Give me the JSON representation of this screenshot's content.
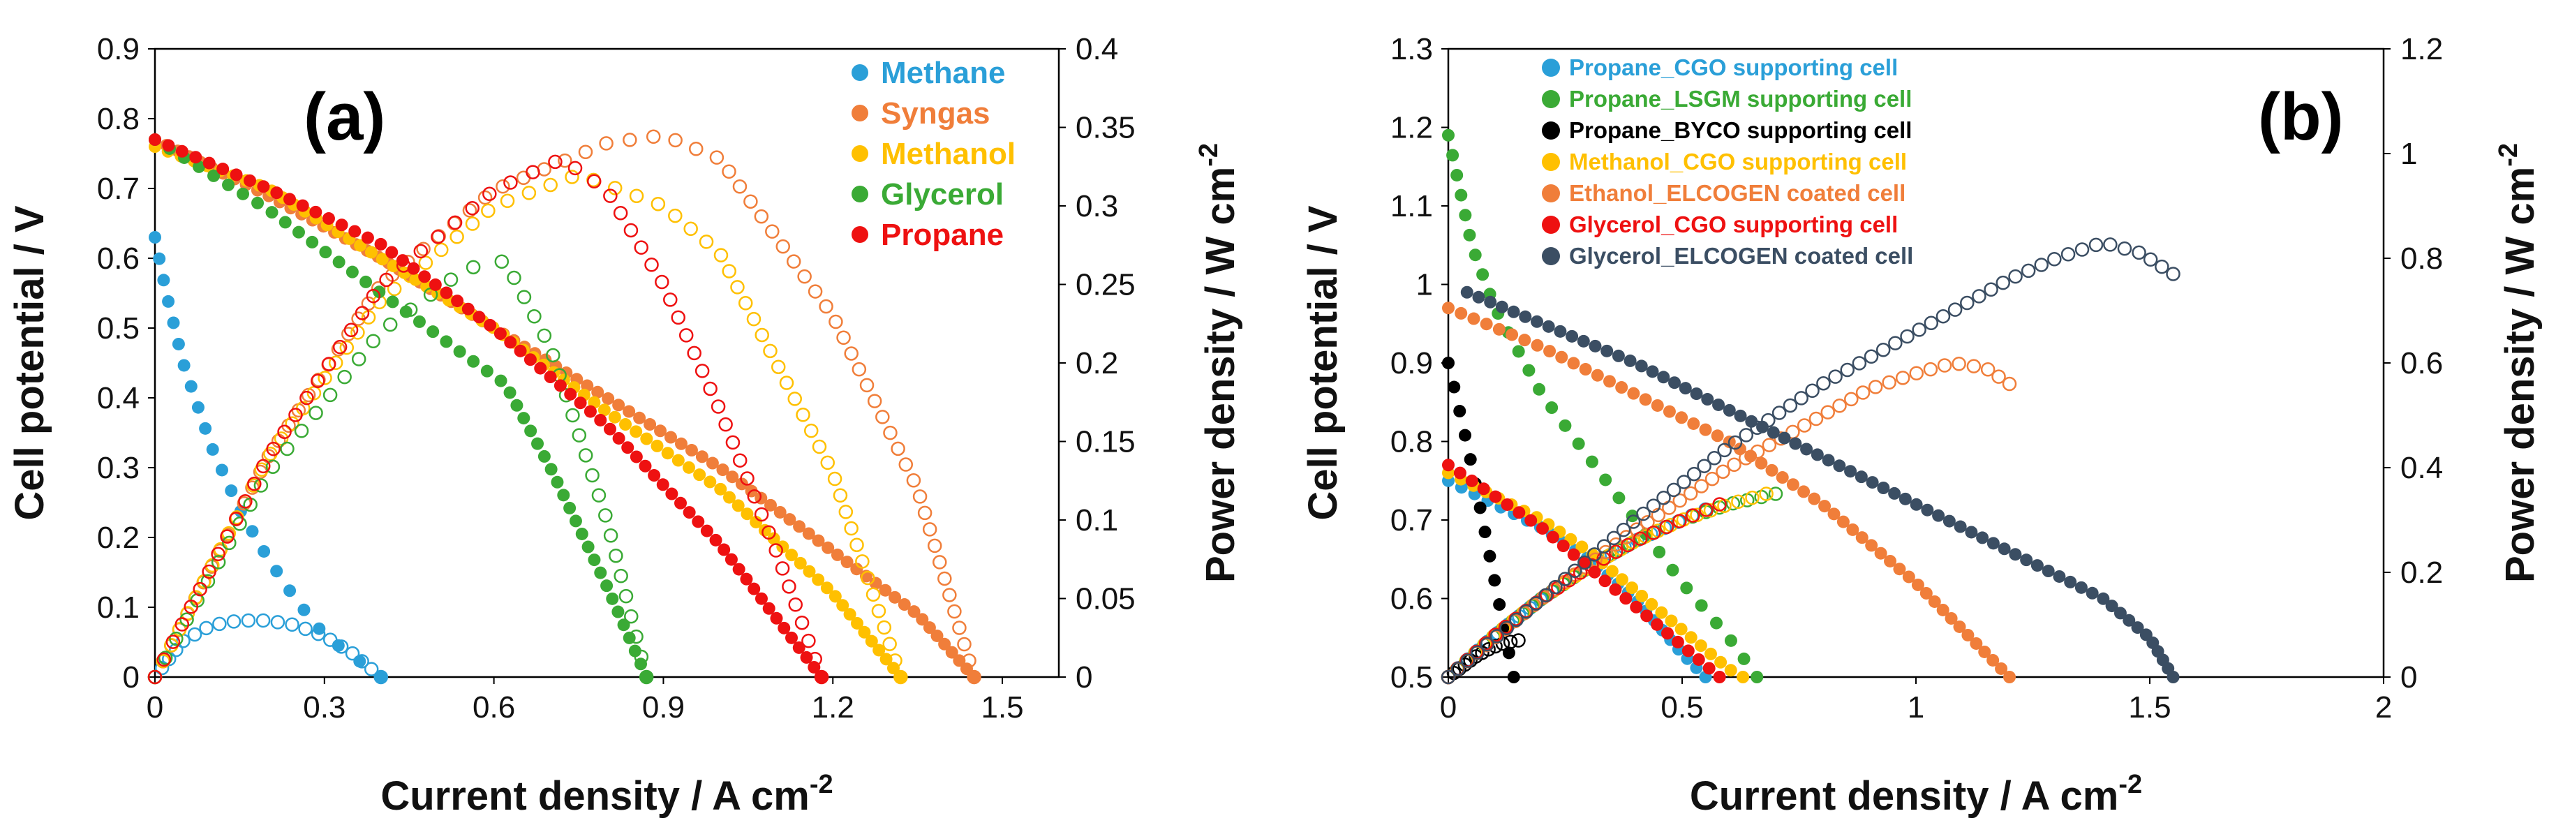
{
  "chart_data": [
    {
      "panel": "(a)",
      "type": "scatter",
      "xlabel": "Current density / A cm",
      "xlabel_sup": "-2",
      "ylabel": "Cell potential / V",
      "y2label": "Power density / W cm",
      "y2label_sup": "-2",
      "xlim": [
        0,
        1.6
      ],
      "ylim": [
        0,
        0.9
      ],
      "y2lim": [
        0,
        0.4
      ],
      "xticks": [
        "0",
        "0.3",
        "0.6",
        "0.9",
        "1.2",
        "1.5"
      ],
      "yticks": [
        "0",
        "0.1",
        "0.2",
        "0.3",
        "0.4",
        "0.5",
        "0.6",
        "0.7",
        "0.8",
        "0.9"
      ],
      "y2ticks": [
        "0",
        "0.05",
        "0.1",
        "0.15",
        "0.2",
        "0.25",
        "0.3",
        "0.35",
        "0.4"
      ],
      "legend_position": "top-right",
      "series": [
        {
          "name": "Methane",
          "color": "#2a9fd8",
          "voltage": {
            "x": [
              0,
              0.02,
              0.05,
              0.1,
              0.15,
              0.2,
              0.25,
              0.3,
              0.35,
              0.4
            ],
            "y": [
              0.63,
              0.55,
              0.45,
              0.33,
              0.24,
              0.17,
              0.11,
              0.06,
              0.03,
              0
            ]
          },
          "power": {
            "x": [
              0,
              0.05,
              0.1,
              0.15,
              0.2,
              0.25,
              0.3,
              0.35,
              0.4
            ],
            "y": [
              0,
              0.023,
              0.033,
              0.036,
              0.036,
              0.033,
              0.026,
              0.015,
              0
            ]
          }
        },
        {
          "name": "Syngas",
          "color": "#f07e3a",
          "voltage": {
            "x": [
              0,
              0.2,
              0.4,
              0.6,
              0.8,
              1.0,
              1.2,
              1.35,
              1.45
            ],
            "y": [
              0.77,
              0.69,
              0.6,
              0.5,
              0.4,
              0.3,
              0.18,
              0.09,
              0
            ]
          },
          "power": {
            "x": [
              0,
              0.2,
              0.4,
              0.6,
              0.8,
              0.9,
              1.0,
              1.2,
              1.35,
              1.45
            ],
            "y": [
              0,
              0.14,
              0.25,
              0.31,
              0.34,
              0.345,
              0.33,
              0.23,
              0.12,
              0
            ]
          }
        },
        {
          "name": "Methanol",
          "color": "#ffc000",
          "voltage": {
            "x": [
              0,
              0.2,
              0.4,
              0.6,
              0.8,
              1.0,
              1.2,
              1.32
            ],
            "y": [
              0.76,
              0.7,
              0.6,
              0.5,
              0.38,
              0.27,
              0.12,
              0
            ]
          },
          "power": {
            "x": [
              0,
              0.2,
              0.4,
              0.6,
              0.75,
              0.9,
              1.0,
              1.1,
              1.2,
              1.32
            ],
            "y": [
              0,
              0.14,
              0.24,
              0.3,
              0.32,
              0.3,
              0.27,
              0.2,
              0.13,
              0
            ]
          }
        },
        {
          "name": "Glycerol",
          "color": "#3aaa35",
          "voltage": {
            "x": [
              0,
              0.2,
              0.4,
              0.55,
              0.62,
              0.7,
              0.8,
              0.87
            ],
            "y": [
              0.77,
              0.67,
              0.55,
              0.46,
              0.42,
              0.3,
              0.13,
              0
            ]
          },
          "power": {
            "x": [
              0,
              0.2,
              0.4,
              0.55,
              0.62,
              0.7,
              0.8,
              0.87
            ],
            "y": [
              0,
              0.13,
              0.22,
              0.26,
              0.265,
              0.21,
              0.1,
              0
            ]
          }
        },
        {
          "name": "Propane",
          "color": "#ee1111",
          "voltage": {
            "x": [
              0,
              0.2,
              0.4,
              0.6,
              0.8,
              1.0,
              1.18
            ],
            "y": [
              0.77,
              0.7,
              0.62,
              0.5,
              0.36,
              0.19,
              0
            ]
          },
          "power": {
            "x": [
              0,
              0.2,
              0.4,
              0.6,
              0.72,
              0.8,
              0.9,
              1.0,
              1.1,
              1.18
            ],
            "y": [
              0,
              0.14,
              0.25,
              0.31,
              0.33,
              0.31,
              0.25,
              0.17,
              0.08,
              0
            ]
          }
        }
      ]
    },
    {
      "panel": "(b)",
      "type": "scatter",
      "xlabel": "Current density / A cm",
      "xlabel_sup": "-2",
      "ylabel": "Cell potential / V",
      "y2label": "Power density / W cm",
      "y2label_sup": "-2",
      "xlim": [
        0,
        2
      ],
      "ylim": [
        0.5,
        1.3
      ],
      "y2lim": [
        0,
        1.2
      ],
      "xticks": [
        "0",
        "0.5",
        "1",
        "1.5",
        "2"
      ],
      "yticks": [
        "0.5",
        "0.6",
        "0.7",
        "0.8",
        "0.9",
        "1",
        "1.1",
        "1.2",
        "1.3"
      ],
      "y2ticks": [
        "0",
        "0.2",
        "0.4",
        "0.6",
        "0.8",
        "1",
        "1.2"
      ],
      "legend_position": "top-left",
      "series": [
        {
          "name": "Propane_CGO supporting cell",
          "color": "#2a9fd8",
          "voltage": {
            "x": [
              0,
              0.1,
              0.2,
              0.3,
              0.4,
              0.5,
              0.55
            ],
            "y": [
              0.75,
              0.72,
              0.69,
              0.65,
              0.6,
              0.53,
              0.5
            ]
          },
          "power": {
            "x": [
              0,
              0.1,
              0.2,
              0.3,
              0.4,
              0.5,
              0.55
            ],
            "y": [
              0,
              0.08,
              0.15,
              0.21,
              0.26,
              0.3,
              0.32
            ]
          }
        },
        {
          "name": "Propane_LSGM supporting cell",
          "color": "#3aaa35",
          "voltage": {
            "x": [
              0,
              0.05,
              0.1,
              0.2,
              0.3,
              0.4,
              0.5,
              0.6,
              0.66
            ],
            "y": [
              1.19,
              1.05,
              0.97,
              0.86,
              0.78,
              0.7,
              0.62,
              0.55,
              0.5
            ]
          },
          "power": {
            "x": [
              0,
              0.1,
              0.2,
              0.3,
              0.4,
              0.5,
              0.6,
              0.7
            ],
            "y": [
              0,
              0.08,
              0.15,
              0.21,
              0.26,
              0.3,
              0.33,
              0.35
            ]
          }
        },
        {
          "name": "Propane_BYCO supporting cell",
          "color": "#000000",
          "voltage": {
            "x": [
              0,
              0.02,
              0.05,
              0.08,
              0.1,
              0.12,
              0.14
            ],
            "y": [
              0.9,
              0.85,
              0.77,
              0.68,
              0.62,
              0.56,
              0.5
            ]
          },
          "power": {
            "x": [
              0,
              0.03,
              0.06,
              0.09,
              0.12,
              0.15
            ],
            "y": [
              0,
              0.02,
              0.04,
              0.055,
              0.065,
              0.07
            ]
          }
        },
        {
          "name": "Methanol_CGO supporting cell",
          "color": "#ffc000",
          "voltage": {
            "x": [
              0,
              0.1,
              0.2,
              0.3,
              0.4,
              0.5,
              0.6,
              0.63
            ],
            "y": [
              0.76,
              0.73,
              0.7,
              0.66,
              0.61,
              0.56,
              0.51,
              0.5
            ]
          },
          "power": {
            "x": [
              0,
              0.1,
              0.2,
              0.3,
              0.4,
              0.5,
              0.6,
              0.68
            ],
            "y": [
              0,
              0.08,
              0.15,
              0.21,
              0.26,
              0.3,
              0.33,
              0.35
            ]
          }
        },
        {
          "name": "Ethanol_ELCOGEN coated cell",
          "color": "#f07e3a",
          "voltage": {
            "x": [
              0,
              0.2,
              0.4,
              0.6,
              0.8,
              1.0,
              1.1,
              1.2
            ],
            "y": [
              0.97,
              0.92,
              0.86,
              0.8,
              0.72,
              0.62,
              0.56,
              0.5
            ]
          },
          "power": {
            "x": [
              0,
              0.2,
              0.4,
              0.6,
              0.8,
              0.9,
              1.0,
              1.08,
              1.15,
              1.2
            ],
            "y": [
              0,
              0.15,
              0.28,
              0.4,
              0.5,
              0.55,
              0.58,
              0.6,
              0.59,
              0.56
            ]
          }
        },
        {
          "name": "Glycerol_CGO supporting cell",
          "color": "#ee1111",
          "voltage": {
            "x": [
              0,
              0.1,
              0.2,
              0.3,
              0.4,
              0.5,
              0.58
            ],
            "y": [
              0.77,
              0.73,
              0.69,
              0.64,
              0.59,
              0.54,
              0.5
            ]
          },
          "power": {
            "x": [
              0,
              0.1,
              0.2,
              0.3,
              0.4,
              0.5,
              0.58
            ],
            "y": [
              0,
              0.08,
              0.15,
              0.21,
              0.26,
              0.3,
              0.33
            ]
          }
        },
        {
          "name": "Glycerol_ELCOGEN coated cell",
          "color": "#3b4e63",
          "voltage": {
            "x": [
              0.04,
              0.2,
              0.4,
              0.6,
              0.8,
              1.0,
              1.2,
              1.4,
              1.5,
              1.55
            ],
            "y": [
              0.99,
              0.95,
              0.9,
              0.84,
              0.78,
              0.72,
              0.66,
              0.6,
              0.55,
              0.5
            ]
          },
          "power": {
            "x": [
              0,
              0.2,
              0.4,
              0.6,
              0.8,
              1.0,
              1.2,
              1.3,
              1.4,
              1.48,
              1.55
            ],
            "y": [
              0,
              0.15,
              0.3,
              0.44,
              0.56,
              0.66,
              0.76,
              0.8,
              0.83,
              0.81,
              0.77
            ]
          }
        }
      ]
    }
  ]
}
